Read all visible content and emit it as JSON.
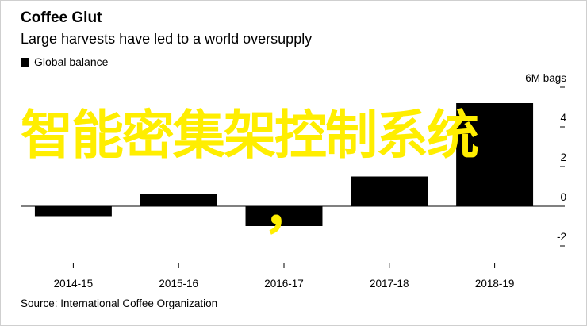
{
  "title": "Coffee Glut",
  "subtitle": "Large harvests have led to a world oversupply",
  "legend": {
    "label": "Global balance",
    "color": "#000000"
  },
  "source": "Source: International Coffee Organization",
  "overlay": {
    "text": "智能密集架控制系统",
    "comma": "，",
    "color": "#ffee00"
  },
  "chart_data": {
    "type": "bar",
    "categories": [
      "2014-15",
      "2015-16",
      "2016-17",
      "2017-18",
      "2018-19"
    ],
    "series": [
      {
        "name": "Global balance",
        "values": [
          -0.5,
          0.6,
          -1.0,
          1.5,
          5.2
        ]
      }
    ],
    "y_ticks": [
      {
        "value": 6,
        "label": "6M bags"
      },
      {
        "value": 4,
        "label": "4"
      },
      {
        "value": 2,
        "label": "2"
      },
      {
        "value": 0,
        "label": "0"
      },
      {
        "value": -2,
        "label": "-2"
      }
    ],
    "ylim": [
      -2.4,
      6.4
    ],
    "grid": false,
    "legend_position": "top-left"
  }
}
